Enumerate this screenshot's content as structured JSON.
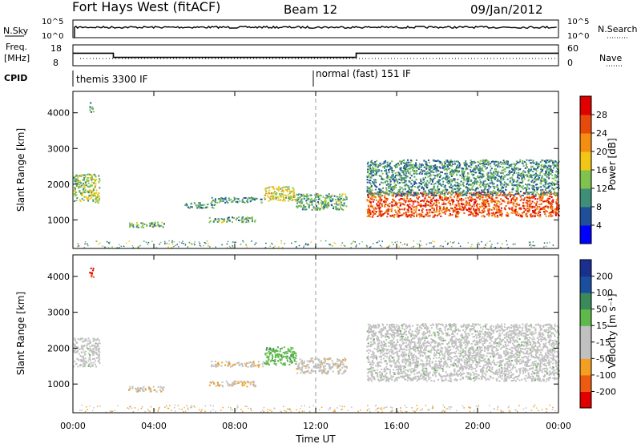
{
  "header": {
    "title": "Fort Hays West (fitACF)",
    "beam": "Beam 12",
    "date": "09/Jan/2012"
  },
  "status_panels": {
    "nsky": {
      "label": "N.Sky",
      "left_ticks": [
        "10^5",
        "10^0"
      ],
      "right_ticks": [
        "10^5",
        "10^0"
      ],
      "right_label": "N.Search"
    },
    "freq": {
      "label_line1": "Freq.",
      "label_line2": "[MHz]",
      "left_ticks": [
        "18",
        "8"
      ],
      "right_ticks": [
        "60",
        "0"
      ],
      "right_label": "Nave",
      "segments": [
        {
          "start_h": 0.0,
          "end_h": 2.0,
          "freq_mhz": 14
        },
        {
          "start_h": 2.0,
          "end_h": 14.0,
          "freq_mhz": 12
        },
        {
          "start_h": 14.0,
          "end_h": 24.0,
          "freq_mhz": 14
        }
      ]
    },
    "cpid": {
      "label": "CPID",
      "modes": [
        {
          "start_h": 0.0,
          "text": "themis 3300 IF"
        },
        {
          "start_h": 12.0,
          "text": "normal (fast) 151 IF"
        }
      ]
    }
  },
  "colors": {
    "power": [
      "#0000ff",
      "#1f4e9a",
      "#3e8f7a",
      "#7fc24d",
      "#f2c516",
      "#f58e10",
      "#e84a0c",
      "#e00000"
    ],
    "velocity": [
      "#e00000",
      "#ee5a10",
      "#f3a020",
      "#c0c0c0",
      "#c0c0c0",
      "#5fb84a",
      "#3b8a5a",
      "#1a4fa0",
      "#1a2f90"
    ]
  },
  "chart_data": [
    {
      "type": "heatmap",
      "title": "",
      "xlabel": "",
      "ylabel": "Slant Range [km]",
      "xlim": [
        0,
        24
      ],
      "ylim": [
        200,
        4600
      ],
      "xticks": [
        "00:00",
        "04:00",
        "08:00",
        "12:00",
        "16:00",
        "20:00",
        "00:00"
      ],
      "yticks": [
        "1000",
        "2000",
        "3000",
        "4000"
      ],
      "colorbar": {
        "label": "Power [dB]",
        "ticks": [
          "4",
          "8",
          "12",
          "16",
          "20",
          "24",
          "28"
        ],
        "range": [
          0,
          32
        ]
      },
      "features": [
        {
          "t_start_h": 0.0,
          "t_end_h": 1.3,
          "range_km": [
            1500,
            2300
          ],
          "value_db": 14
        },
        {
          "t_start_h": 0.8,
          "t_end_h": 1.0,
          "range_km": [
            4000,
            4300
          ],
          "value_db": 10
        },
        {
          "t_start_h": 2.7,
          "t_end_h": 4.5,
          "range_km": [
            800,
            950
          ],
          "value_db": 12
        },
        {
          "t_start_h": 5.5,
          "t_end_h": 7.0,
          "range_km": [
            1350,
            1500
          ],
          "value_db": 10
        },
        {
          "t_start_h": 6.7,
          "t_end_h": 9.0,
          "range_km": [
            950,
            1100
          ],
          "value_db": 12
        },
        {
          "t_start_h": 6.8,
          "t_end_h": 9.4,
          "range_km": [
            1500,
            1650
          ],
          "value_db": 10
        },
        {
          "t_start_h": 9.4,
          "t_end_h": 11.0,
          "range_km": [
            1550,
            1950
          ],
          "value_db": 16
        },
        {
          "t_start_h": 11.0,
          "t_end_h": 13.5,
          "range_km": [
            1300,
            1750
          ],
          "value_db": 12
        },
        {
          "t_start_h": 14.5,
          "t_end_h": 24.0,
          "range_km": [
            1100,
            1800
          ],
          "value_db": 26
        },
        {
          "t_start_h": 14.5,
          "t_end_h": 24.0,
          "range_km": [
            1700,
            2700
          ],
          "value_db": 10
        }
      ]
    },
    {
      "type": "heatmap",
      "title": "",
      "xlabel": "Time UT",
      "ylabel": "Slant Range [km]",
      "xlim": [
        0,
        24
      ],
      "ylim": [
        200,
        4600
      ],
      "xticks": [
        "00:00",
        "04:00",
        "08:00",
        "12:00",
        "16:00",
        "20:00",
        "00:00"
      ],
      "yticks": [
        "1000",
        "2000",
        "3000",
        "4000"
      ],
      "colorbar": {
        "label": "Velocity [m s⁻¹]",
        "ticks": [
          "-200",
          "-100",
          "-50",
          "-15",
          "15",
          "50",
          "100",
          "200"
        ],
        "range": [
          -250,
          250
        ]
      },
      "features": [
        {
          "t_start_h": 0.0,
          "t_end_h": 1.3,
          "range_km": [
            1500,
            2300
          ],
          "value_ms": 0
        },
        {
          "t_start_h": 0.8,
          "t_end_h": 1.0,
          "range_km": [
            4000,
            4300
          ],
          "value_ms": -200
        },
        {
          "t_start_h": 2.7,
          "t_end_h": 4.5,
          "range_km": [
            800,
            950
          ],
          "value_ms": -70
        },
        {
          "t_start_h": 6.7,
          "t_end_h": 9.0,
          "range_km": [
            950,
            1100
          ],
          "value_ms": -70
        },
        {
          "t_start_h": 6.8,
          "t_end_h": 9.4,
          "range_km": [
            1500,
            1650
          ],
          "value_ms": -70
        },
        {
          "t_start_h": 9.4,
          "t_end_h": 11.0,
          "range_km": [
            1550,
            2050
          ],
          "value_ms": 60
        },
        {
          "t_start_h": 11.0,
          "t_end_h": 13.5,
          "range_km": [
            1300,
            1750
          ],
          "value_ms": -60
        },
        {
          "t_start_h": 14.5,
          "t_end_h": 24.0,
          "range_km": [
            1100,
            2700
          ],
          "value_ms": 0
        }
      ]
    }
  ]
}
